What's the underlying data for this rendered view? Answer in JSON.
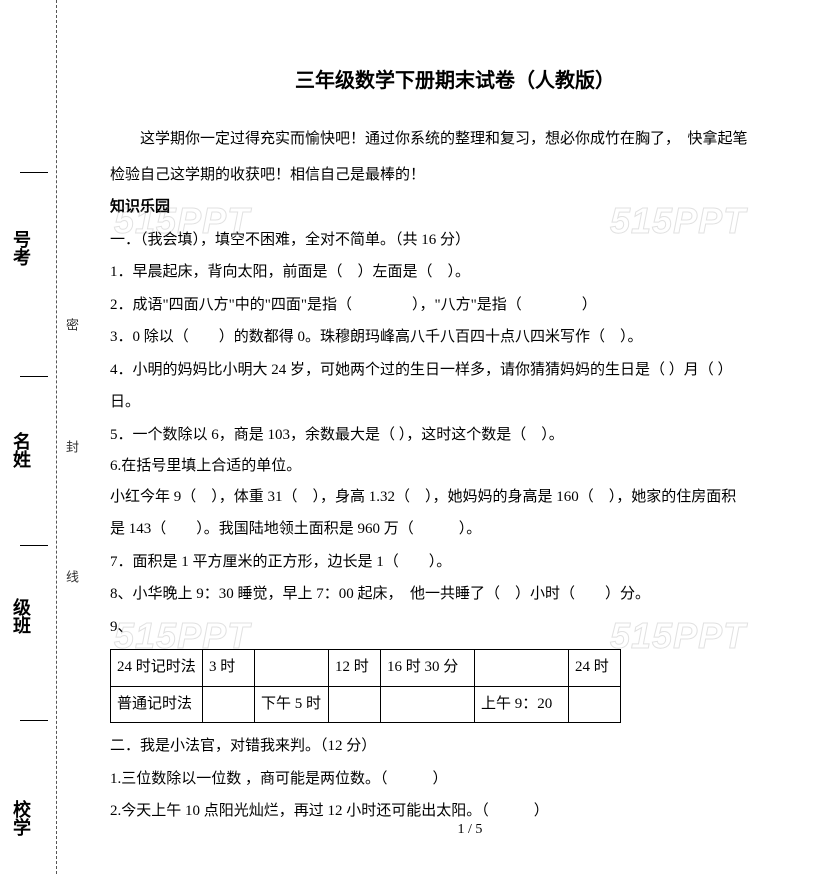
{
  "watermark": "515PPT",
  "binding": {
    "labels": {
      "kaohao": "号考",
      "xingming": "名姓",
      "banji": "级班",
      "xuexiao": "校学"
    },
    "small": {
      "mi": "密",
      "feng": "封",
      "xian": "线"
    }
  },
  "title": "三年级数学下册期末试卷（人教版）",
  "intro_line1": "这学期你一定过得充实而愉快吧！通过你系统的整理和复习，想必你成竹在胸了，　快拿起笔",
  "intro_line2": "检验自己这学期的收获吧！相信自己是最棒的！",
  "section_knowledge": "知识乐园",
  "sec1_head": "一．（我会填），填空不困难，全对不简单。（共 16 分）",
  "q1": "1．早晨起床，背向太阳，前面是（　）左面是（　）。",
  "q2": "2．成语\"四面八方\"中的\"四面\"是指（　　　　），\"八方\"是指（　　　　）",
  "q3": "3．0 除以（　　）的数都得 0。珠穆朗玛峰高八千八百四十点八四米写作（　）。",
  "q4a": "4．小明的妈妈比小明大 24 岁，可她两个过的生日一样多，请你猜猜妈妈的生日是（ ）月（ ）",
  "q4b": "日。",
  "q5": "5．一个数除以 6，商是 103，余数最大是（ ），这时这个数是（　）。",
  "q6": "6.在括号里填上合适的单位。",
  "q6a": "小红今年 9（　），体重 31（　），身高 1.32（　），她妈妈的身高是 160（　），她家的住房面积",
  "q6b": "是 143（　　）。我国陆地领土面积是 960 万（　　　）。",
  "q7": "7．面积是 1 平方厘米的正方形，边长是 1（　　）。",
  "q8": "8、小华晚上 9：30 睡觉，早上 7：00 起床，　他一共睡了（　）小时（　　）分。",
  "q9_label": "9、",
  "table": {
    "rows": [
      [
        "24 时记时法",
        "3 时",
        "",
        "12 时",
        "16 时 30 分",
        "",
        "24 时"
      ],
      [
        "普通记时法",
        "",
        "下午 5 时",
        "",
        "",
        "上午 9：20",
        ""
      ]
    ]
  },
  "sec2_head": "二．我是小法官，对错我来判。（12 分）",
  "j1": "1.三位数除以一位数 ，商可能是两位数。（　　　）",
  "j2": "2.今天上午 10 点阳光灿烂，再过 12 小时还可能出太阳。（　　　）",
  "page_num": "1 / 5"
}
